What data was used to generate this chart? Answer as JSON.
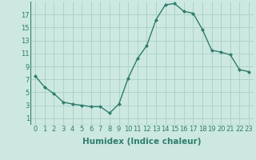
{
  "x": [
    0,
    1,
    2,
    3,
    4,
    5,
    6,
    7,
    8,
    9,
    10,
    11,
    12,
    13,
    14,
    15,
    16,
    17,
    18,
    19,
    20,
    21,
    22,
    23
  ],
  "y": [
    7.5,
    5.8,
    4.8,
    3.5,
    3.2,
    3.0,
    2.8,
    2.8,
    1.8,
    3.2,
    7.2,
    10.2,
    12.2,
    16.2,
    18.5,
    18.7,
    17.5,
    17.2,
    14.7,
    11.5,
    11.2,
    10.8,
    8.5,
    8.2
  ],
  "line_color": "#2e7d6e",
  "marker": "D",
  "marker_size": 2.0,
  "background_color": "#cce8e0",
  "grid_color": "#aacfc8",
  "xlabel": "Humidex (Indice chaleur)",
  "xlabel_fontsize": 7.5,
  "xlim": [
    -0.5,
    23.5
  ],
  "ylim": [
    0,
    19
  ],
  "yticks": [
    1,
    3,
    5,
    7,
    9,
    11,
    13,
    15,
    17
  ],
  "xticks": [
    0,
    1,
    2,
    3,
    4,
    5,
    6,
    7,
    8,
    9,
    10,
    11,
    12,
    13,
    14,
    15,
    16,
    17,
    18,
    19,
    20,
    21,
    22,
    23
  ],
  "tick_fontsize": 6,
  "line_width": 1.0
}
